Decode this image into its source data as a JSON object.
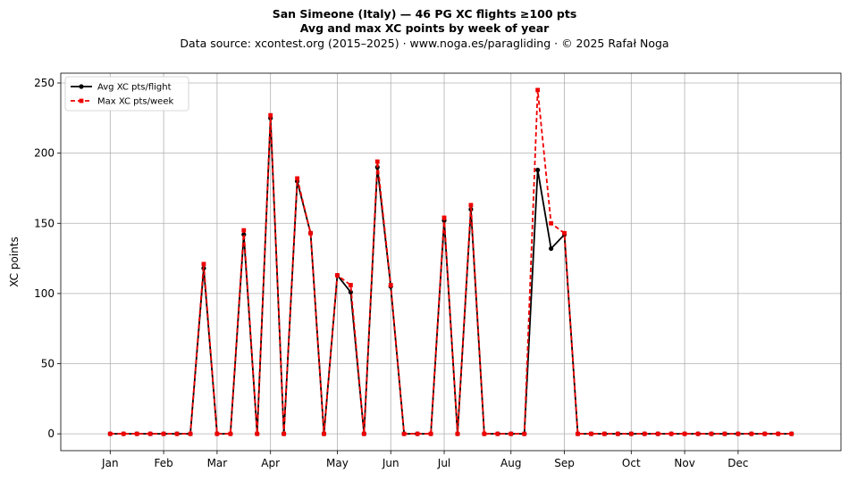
{
  "header": {
    "title": "San Simeone (Italy)  —  46 PG XC flights ≥100 pts",
    "subtitle": "Avg and max XC points by week of year",
    "source": "Data source: xcontest.org (2015–2025)  ·  www.noga.es/paragliding  ·  © 2025 Rafał Noga"
  },
  "chart_data": {
    "type": "line",
    "title": "San Simeone (Italy)  —  46 PG XC flights ≥100 pts",
    "subtitle": "Avg and max XC points by week of year",
    "xlabel": "",
    "ylabel": "XC points",
    "ylim": [
      -12,
      257
    ],
    "yticks": [
      0,
      50,
      100,
      150,
      200,
      250
    ],
    "xticks": [
      {
        "label": "Jan",
        "week": 1
      },
      {
        "label": "Feb",
        "week": 5
      },
      {
        "label": "Mar",
        "week": 9
      },
      {
        "label": "Apr",
        "week": 13
      },
      {
        "label": "May",
        "week": 18
      },
      {
        "label": "Jun",
        "week": 22
      },
      {
        "label": "Jul",
        "week": 26
      },
      {
        "label": "Aug",
        "week": 31
      },
      {
        "label": "Sep",
        "week": 35
      },
      {
        "label": "Oct",
        "week": 40
      },
      {
        "label": "Nov",
        "week": 44
      },
      {
        "label": "Dec",
        "week": 48
      }
    ],
    "grid": true,
    "legend_position": "top-left",
    "x": [
      1,
      2,
      3,
      4,
      5,
      6,
      7,
      8,
      9,
      10,
      11,
      12,
      13,
      14,
      15,
      16,
      17,
      18,
      19,
      20,
      21,
      22,
      23,
      24,
      25,
      26,
      27,
      28,
      29,
      30,
      31,
      32,
      33,
      34,
      35,
      36,
      37,
      38,
      39,
      40,
      41,
      42,
      43,
      44,
      45,
      46,
      47,
      48,
      49,
      50,
      51,
      52
    ],
    "series": [
      {
        "name": "Avg XC pts/flight",
        "color": "#000000",
        "style": "solid",
        "marker": "circle",
        "values": [
          0,
          0,
          0,
          0,
          0,
          0,
          0,
          118,
          0,
          0,
          142,
          0,
          225,
          0,
          180,
          143,
          0,
          113,
          101,
          0,
          190,
          105,
          0,
          0,
          0,
          152,
          0,
          160,
          0,
          0,
          0,
          0,
          188,
          132,
          142,
          0,
          0,
          0,
          0,
          0,
          0,
          0,
          0,
          0,
          0,
          0,
          0,
          0,
          0,
          0,
          0,
          0
        ]
      },
      {
        "name": "Max XC pts/week",
        "color": "#ee0000",
        "style": "dashed",
        "marker": "square",
        "values": [
          0,
          0,
          0,
          0,
          0,
          0,
          0,
          121,
          0,
          0,
          145,
          0,
          227,
          0,
          182,
          143,
          0,
          113,
          106,
          0,
          194,
          106,
          0,
          0,
          0,
          154,
          0,
          163,
          0,
          0,
          0,
          0,
          245,
          150,
          143,
          0,
          0,
          0,
          0,
          0,
          0,
          0,
          0,
          0,
          0,
          0,
          0,
          0,
          0,
          0,
          0,
          0
        ]
      }
    ]
  }
}
